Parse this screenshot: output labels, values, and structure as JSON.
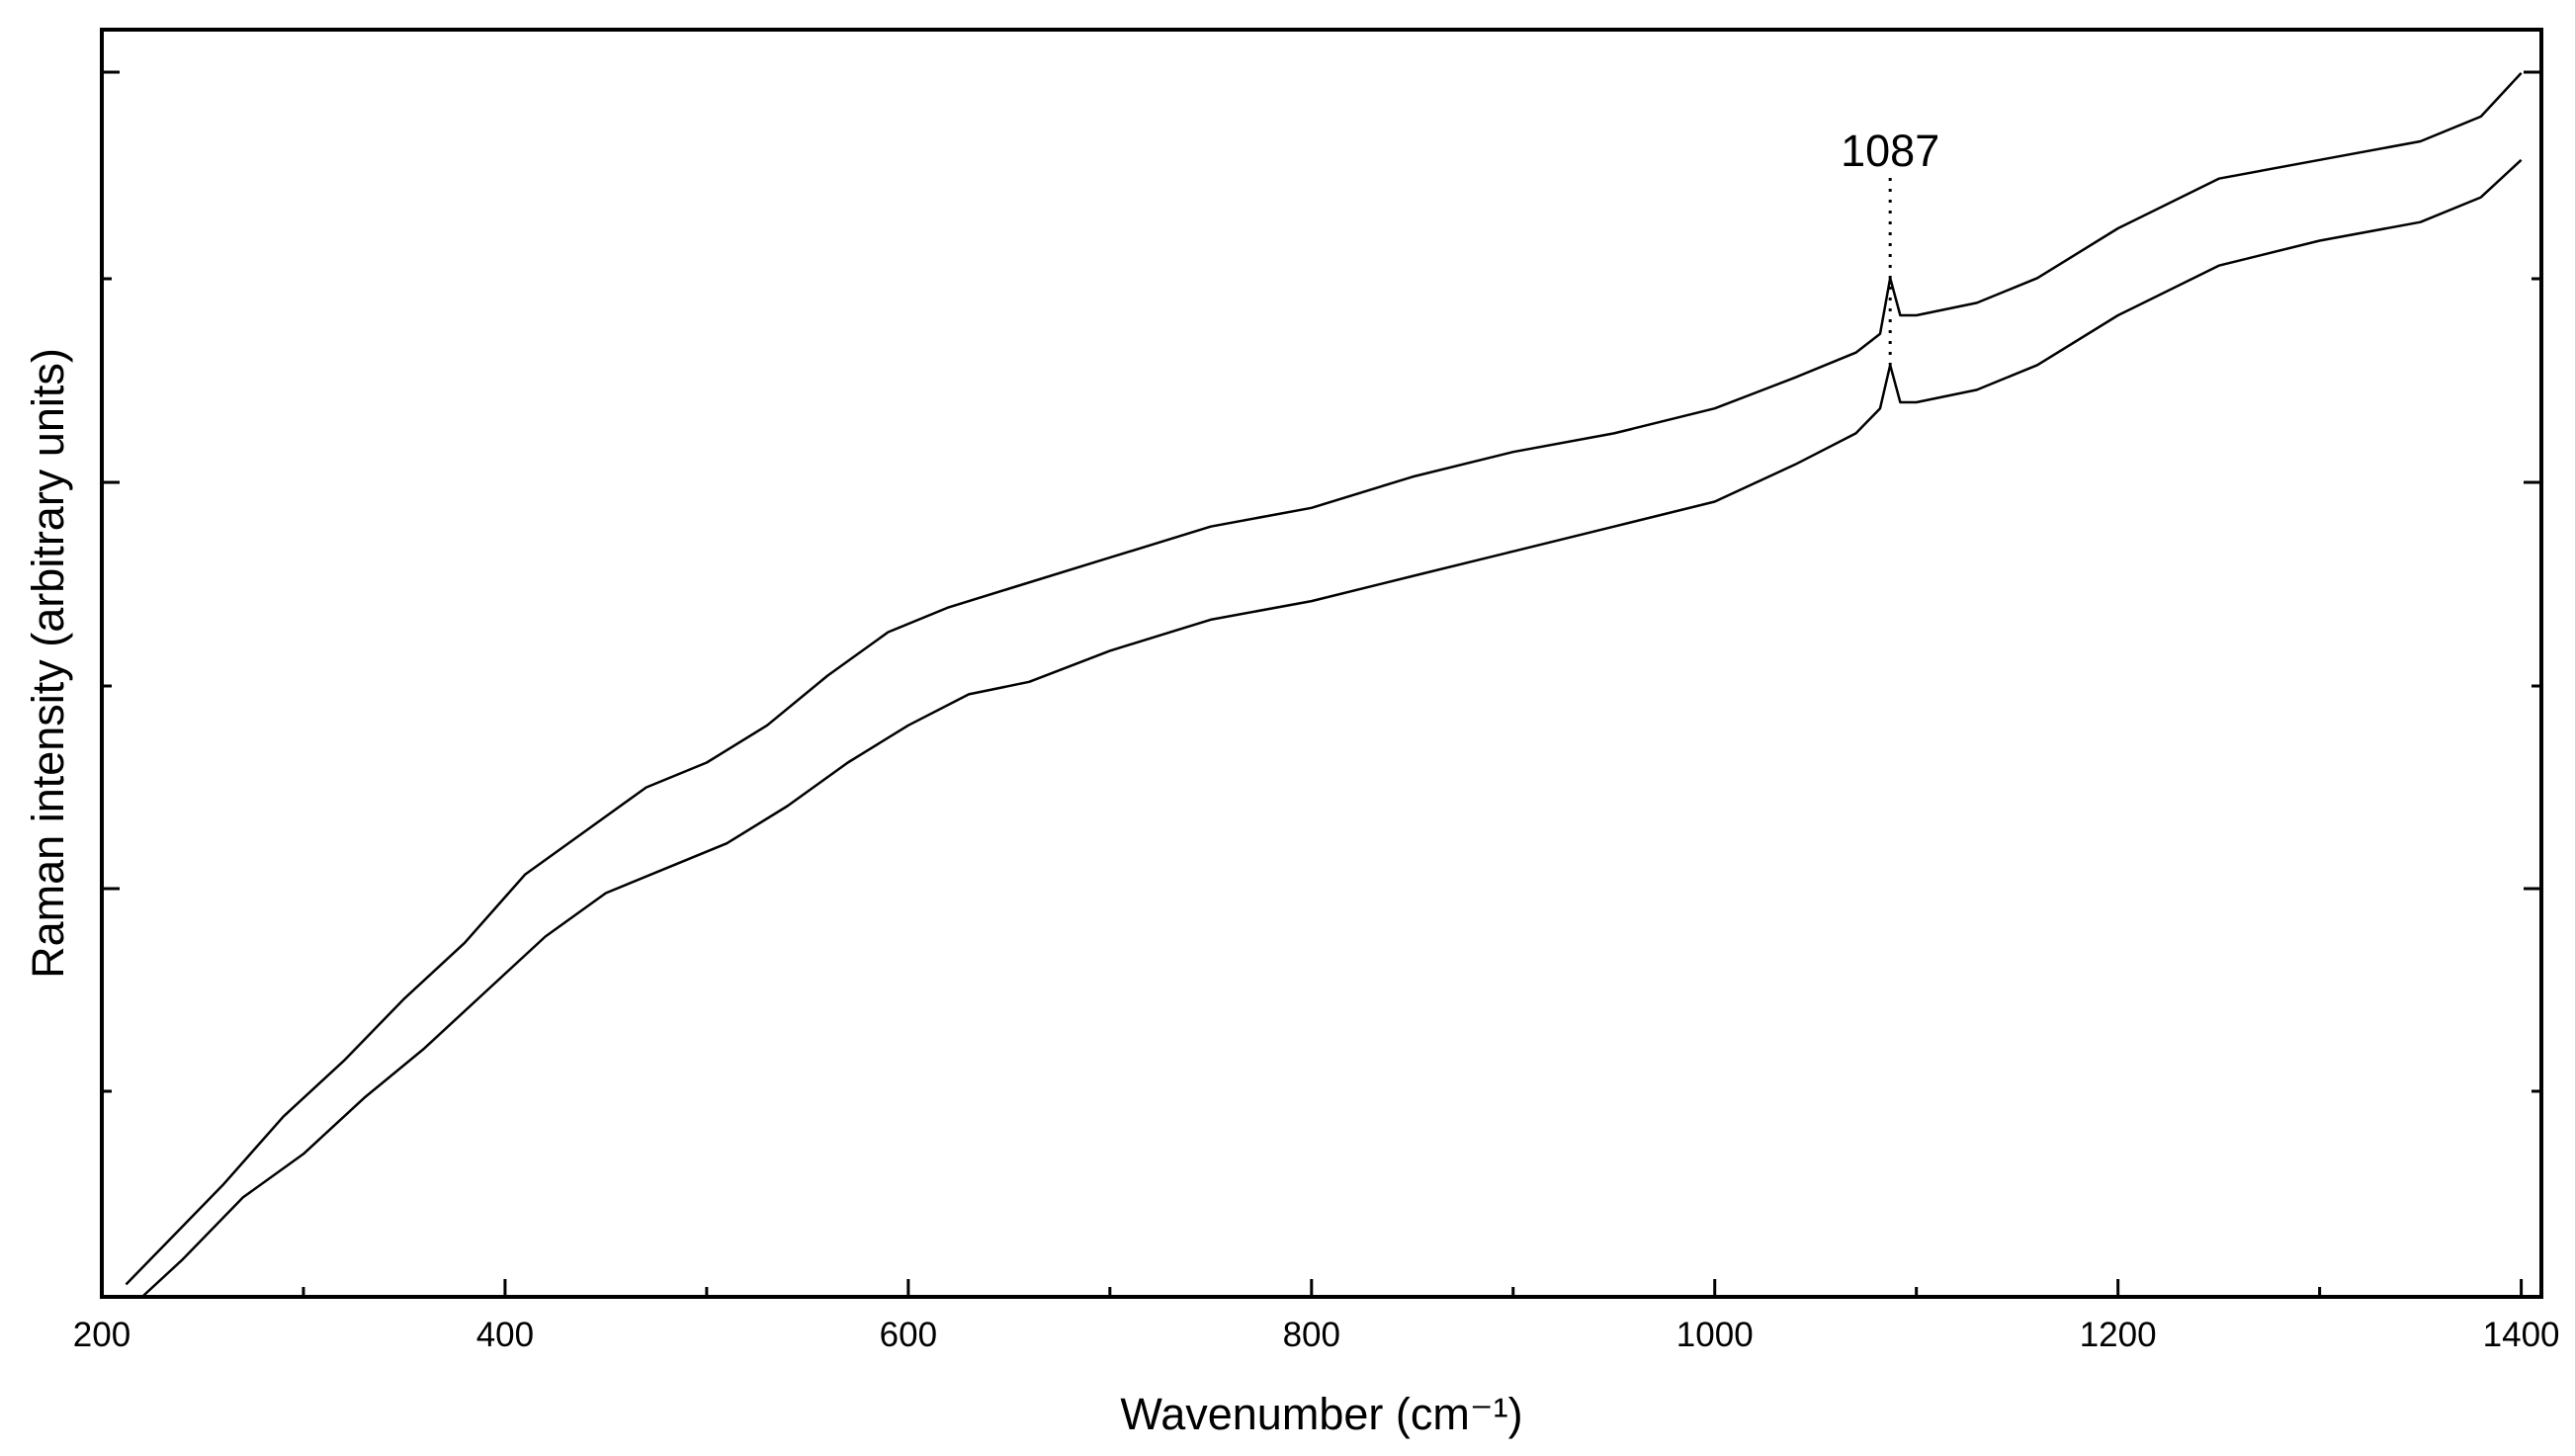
{
  "chart_data": {
    "type": "line",
    "xlabel": "Wavenumber (cm⁻¹)",
    "ylabel": "Raman intensity (arbitrary units)",
    "xlim": [
      200,
      1410
    ],
    "ylim": [
      0,
      100
    ],
    "x_ticks": [
      200,
      400,
      600,
      800,
      1000,
      1200,
      1400
    ],
    "y_tick_labels_shown": false,
    "grid": false,
    "legend": "none",
    "annotations": [
      {
        "text": "1087",
        "x": 1087,
        "style": "dotted vertical line"
      }
    ],
    "series": [
      {
        "x": [
          212,
          230,
          260,
          290,
          320,
          350,
          380,
          410,
          440,
          470,
          500,
          530,
          560,
          590,
          620,
          650,
          700,
          750,
          800,
          850,
          900,
          950,
          1000,
          1040,
          1070,
          1082,
          1087,
          1092,
          1100,
          1130,
          1160,
          1200,
          1250,
          1300,
          1350,
          1380,
          1400
        ],
        "values": [
          1,
          4,
          9,
          14.5,
          19,
          24,
          28.5,
          34,
          37.5,
          41,
          43,
          46,
          50,
          53.5,
          55.5,
          57,
          59.5,
          62,
          63.5,
          66,
          68,
          69.5,
          71.5,
          74,
          76,
          77.5,
          82,
          79,
          79,
          80,
          82,
          86,
          90,
          91.5,
          93,
          95,
          98.5
        ]
      },
      {
        "x": [
          220,
          240,
          270,
          300,
          330,
          360,
          390,
          420,
          450,
          480,
          510,
          540,
          570,
          600,
          630,
          660,
          700,
          750,
          800,
          850,
          900,
          950,
          1000,
          1040,
          1070,
          1082,
          1087,
          1092,
          1100,
          1130,
          1160,
          1200,
          1250,
          1300,
          1350,
          1380,
          1400
        ],
        "values": [
          0,
          3,
          8,
          11.5,
          16,
          20,
          24.5,
          29,
          32.5,
          34.5,
          36.5,
          39.5,
          43,
          46,
          48.5,
          49.5,
          52,
          54.5,
          56,
          58,
          60,
          62,
          64,
          67,
          69.5,
          71.5,
          75,
          72,
          72,
          73,
          75,
          79,
          83,
          85,
          86.5,
          88.5,
          91.5
        ]
      }
    ]
  }
}
